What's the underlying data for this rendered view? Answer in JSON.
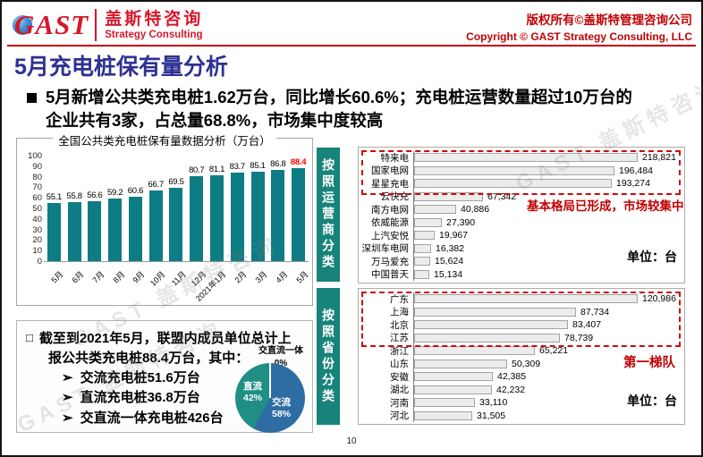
{
  "header": {
    "logo_text": "GAST",
    "brand_cn": "盖斯特咨询",
    "brand_en": "Strategy Consulting",
    "copyright_cn": "版权所有©盖斯特管理咨询公司",
    "copyright_en": "Copyright © GAST Strategy Consulting, LLC"
  },
  "slide": {
    "title": "5月充电桩保有量分析",
    "bullet_line1": "5月新增公共类充电桩1.62万台，同比增长60.6%；充电桩运营数量超过10万台的",
    "bullet_line2": "企业共有3家，占总量68.8%，市场集中度较高",
    "page_number": "10"
  },
  "summary_box": {
    "bullet_glyph": "□",
    "arrow_glyph": "➢",
    "line1": "截至到2021年5月，联盟内成员单位总计上",
    "line2": "报公共类充电桩88.4万台，其中：",
    "items": [
      "交流充电桩51.6万台",
      "直流充电桩36.8万台",
      "交直流一体充电桩426台"
    ]
  },
  "watermark": {
    "text": "GAST 盖斯特咨询"
  },
  "colors": {
    "title_navy": "#2E3192",
    "brand_red": "#C00000",
    "bar_teal": "#0E7C85",
    "section_teal": "#17837A",
    "pie_blue": "#2E6DA4",
    "pie_teal": "#1F8E84",
    "highlight_red": "#FF0000"
  },
  "chart_data": [
    {
      "type": "bar",
      "title": "全国公共类充电桩保有量数据分析（万台）",
      "categories": [
        "5月",
        "6月",
        "7月",
        "8月",
        "9月",
        "10月",
        "11月",
        "12月",
        "2021年1月",
        "2月",
        "3月",
        "4月",
        "5月"
      ],
      "values": [
        55.1,
        55.8,
        56.6,
        59.2,
        60.6,
        66.7,
        69.5,
        80.7,
        81.1,
        83.7,
        85.1,
        86.8,
        88.4
      ],
      "ylim": [
        0,
        100
      ],
      "yticks": [
        100,
        90,
        80,
        70,
        60,
        50,
        40,
        30,
        20,
        10,
        0
      ],
      "bar_color": "#0E7C85",
      "last_value_color": "#FF0000",
      "legend": "none",
      "grid": "off"
    },
    {
      "type": "bar-horizontal",
      "section_label": "按照运营商分类",
      "unit_label": "单位：台",
      "annotation": "基本格局已形成，市场较集中",
      "highlight_top_n": 3,
      "categories": [
        "特来电",
        "国家电网",
        "星星充电",
        "云快充",
        "南方电网",
        "依威能源",
        "上汽安悦",
        "深圳车电网",
        "万马爱充",
        "中国普天"
      ],
      "values": [
        218821,
        196484,
        193274,
        67342,
        40886,
        27390,
        19967,
        16382,
        15624,
        15134
      ],
      "value_labels": [
        "218,821",
        "196,484",
        "193,274",
        "67,342",
        "40,886",
        "27,390",
        "19,967",
        "16,382",
        "15,624",
        "15,134"
      ]
    },
    {
      "type": "bar-horizontal",
      "section_label": "按照省份分类",
      "unit_label": "单位：台",
      "annotation": "第一梯队",
      "highlight_top_n": 4,
      "categories": [
        "广东",
        "上海",
        "北京",
        "江苏",
        "浙江",
        "山东",
        "安徽",
        "湖北",
        "河南",
        "河北"
      ],
      "values": [
        120986,
        87734,
        83407,
        78739,
        65221,
        50309,
        42385,
        42232,
        33110,
        31505
      ],
      "value_labels": [
        "120,986",
        "87,734",
        "83,407",
        "78,739",
        "65,221",
        "50,309",
        "42,385",
        "42,232",
        "33,110",
        "31,505"
      ]
    },
    {
      "type": "pie",
      "slices": [
        {
          "label": "交流",
          "value_pct": 58,
          "pct_label": "58%",
          "color": "#2E6DA4"
        },
        {
          "label": "直流",
          "value_pct": 42,
          "pct_label": "42%",
          "color": "#1F8E84"
        },
        {
          "label": "交直流一体",
          "value_pct": 0,
          "pct_label": "0%",
          "color": "#FFFFFF"
        }
      ]
    }
  ]
}
